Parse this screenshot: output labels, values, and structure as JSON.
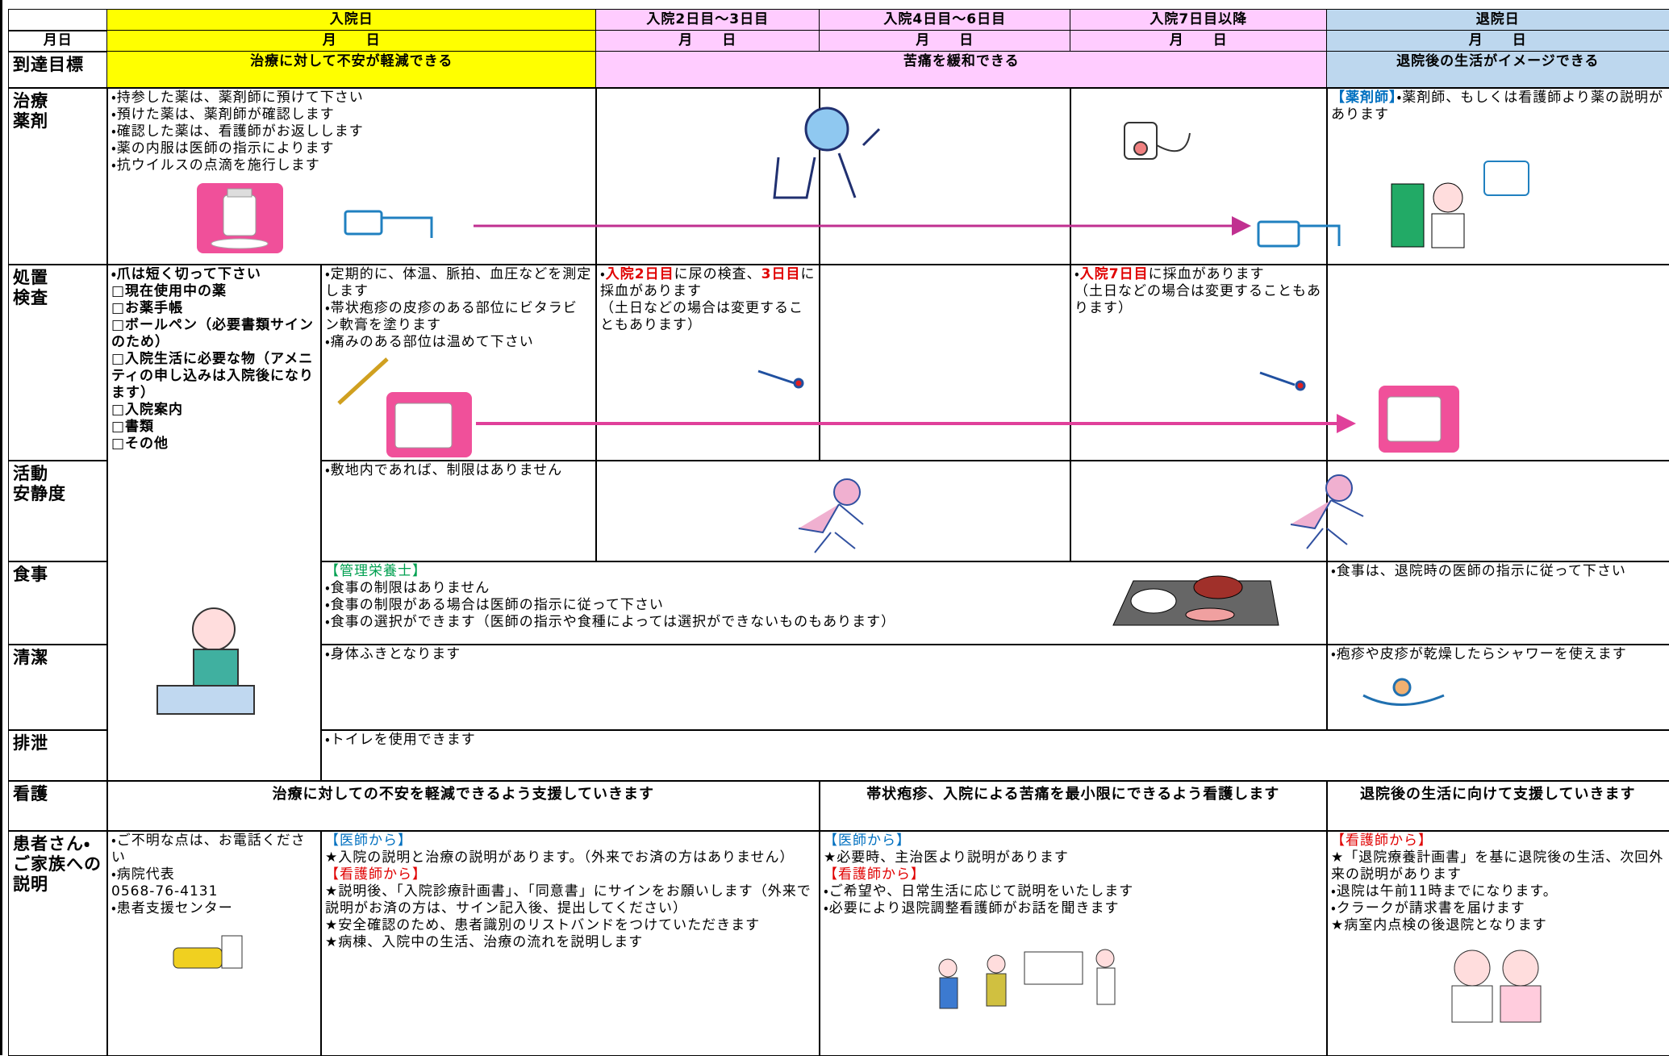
{
  "header": {
    "phases": [
      "入院日",
      "入院2日目〜3日目",
      "入院4日目〜6日目",
      "入院7日目以降",
      "退院日"
    ],
    "phase_colors": [
      "#ffff00",
      "#ffccff",
      "#ffccff",
      "#ffccff",
      "#bdd7ee"
    ],
    "date_label": "月日",
    "dates": [
      "月　　日",
      "月　　日",
      "月　　日",
      "月　　日",
      "月　　日"
    ]
  },
  "goals": {
    "label": "到達目標",
    "items": [
      "治療に対して不安が軽減できる",
      "苦痛を緩和できる",
      "退院後の生活がイメージできる"
    ]
  },
  "rows": [
    {
      "label": "治療\n薬剤",
      "cells": [
        [
          "・持参した薬は、薬剤師に預けて下さい",
          "・預けた薬は、薬剤師が確認します",
          "・確認した薬は、看護師がお返しします",
          "・薬の内服は医師の指示によります",
          "・抗ウイルスの点滴を施行します"
        ],
        [
          {
            "segments": [
              {
                "text": "【薬剤師】",
                "color": "#0070c0"
              },
              {
                "text": "・薬剤師、もしくは看護師より薬の説明があります"
              }
            ]
          }
        ]
      ]
    },
    {
      "label": "処置\n検査",
      "cells": [
        [
          "・爪は短く切って下さい",
          "□現在使用中の薬",
          "□お薬手帳",
          "□ボールペン（必要書類サインのため）",
          "□入院生活に必要な物（アメニティの申し込みは入院後になります）",
          "□入院案内",
          "□書類",
          "□その他"
        ],
        [
          "・定期的に、体温、脈拍、血圧などを測定します",
          "・帯状疱疹の皮疹のある部位にビタラビン軟膏を塗ります",
          "・痛みのある部位は温めて下さい"
        ],
        [
          {
            "segments": [
              {
                "text": "・"
              },
              {
                "text": "入院2日目",
                "color": "#e00000"
              },
              {
                "text": "に尿の検査、"
              },
              {
                "text": "3日目",
                "color": "#e00000"
              },
              {
                "text": "に採血があります"
              }
            ]
          },
          "（土日などの場合は変更することもあります）"
        ],
        [
          {
            "segments": [
              {
                "text": "・"
              },
              {
                "text": "入院7日目",
                "color": "#e00000"
              },
              {
                "text": "に採血があります"
              }
            ]
          },
          "（土日などの場合は変更することもあります）"
        ]
      ]
    },
    {
      "label": "活動\n安静度",
      "cells": [
        [
          "・敷地内であれば、制限はありません"
        ]
      ]
    },
    {
      "label": "食事",
      "cells": [
        [
          {
            "text": "【管理栄養士】",
            "color": "#00a050"
          },
          "・食事の制限はありません",
          "・食事の制限がある場合は医師の指示に従って下さい",
          "・食事の選択ができます（医師の指示や食種によっては選択ができないものもあります）"
        ],
        [
          "・食事は、退院時の医師の指示に従って下さい"
        ]
      ]
    },
    {
      "label": "清潔",
      "cells": [
        [
          "・身体ふきとなります"
        ],
        [
          "・疱疹や皮疹が乾燥したらシャワーを使えます"
        ]
      ]
    },
    {
      "label": "排泄",
      "cells": [
        [
          "・トイレを使用できます"
        ]
      ]
    },
    {
      "label": "看護",
      "cells": [
        "治療に対しての不安を軽減できるよう支援していきます",
        "帯状疱疹、入院による苦痛を最小限にできるよう看護します",
        "退院後の生活に向けて支援していきます"
      ]
    },
    {
      "label": "患者さん・ご家族への説明",
      "cells": [
        [
          "・ご不明な点は、お電話ください",
          "・病院代表",
          "0568-76-4131",
          "・患者支援センター"
        ],
        [
          {
            "text": "【医師から】",
            "color": "#0070c0"
          },
          "★入院の説明と治療の説明があります。（外来でお済の方はありません）",
          {
            "text": "【看護師から】",
            "color": "#e00000"
          },
          "★説明後、「入院診療計画書」、「同意書」にサインをお願いします（外来で説明がお済の方は、サイン記入後、提出してください）",
          "★安全確認のため、患者識別のリストバンドをつけていただきます",
          "★病棟、入院中の生活、治療の流れを説明します"
        ],
        [
          {
            "text": "【医師から】",
            "color": "#0070c0"
          },
          "★必要時、主治医より説明があります",
          {
            "text": "【看護師から】",
            "color": "#e00000"
          },
          "・ご希望や、日常生活に応じて説明をいたします",
          "・必要により退院調整看護師がお話を聞きます"
        ],
        [
          {
            "text": "【看護師から】",
            "color": "#e00000"
          },
          "★「退院療養計画書」を基に退院後の生活、次回外来の説明があります",
          "・退院は午前11時までになります。",
          "・クラークが請求書を届けます",
          "★病室内点検の後退院となります"
        ]
      ]
    }
  ]
}
